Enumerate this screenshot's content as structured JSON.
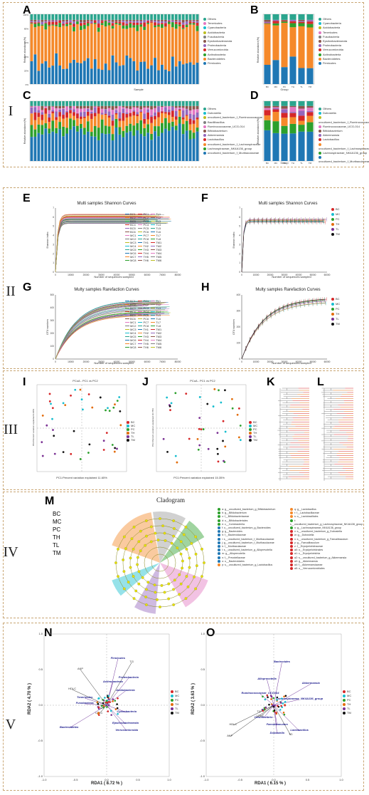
{
  "section_labels": [
    "I",
    "II",
    "III",
    "IV",
    "V"
  ],
  "panel_letters": [
    "A",
    "B",
    "C",
    "D",
    "E",
    "F",
    "G",
    "H",
    "I",
    "J",
    "K",
    "L",
    "M",
    "N",
    "O"
  ],
  "colors": {
    "border": "#c9a674",
    "blue": "#1f77b4",
    "orange": "#f5892a",
    "green": "#2ca02c",
    "red": "#d62728",
    "teal": "#2ba58e"
  },
  "panelA": {
    "xlabel": "Sample",
    "ylabel": "Relative abundance(%)",
    "legend": [
      "Others",
      "Tenericutes",
      "Cyanobacteria",
      "Acidobacteria",
      "Fusobacteria",
      "Epsilonbacteraeota",
      "Proteobacteria",
      "Verrucomicrobia",
      "Actinobacteria",
      "Bacteroidetes",
      "Firmicutes"
    ],
    "yticks": [
      "100%",
      "80%",
      "60%",
      "40%",
      "20%",
      "0%"
    ]
  },
  "panelB": {
    "xlabel": "Group",
    "ylabel": "Relative abundance(%)",
    "groups": [
      "BC",
      "MC",
      "PC",
      "TH",
      "TL",
      "TM"
    ],
    "legend": [
      "Others",
      "Cyanobacteria",
      "Acidobacteria",
      "Tenericutes",
      "Fusobacteria",
      "Epsilonbacteraeota",
      "Proteobacteria",
      "Verrucomicrobia",
      "Actinobacteria",
      "Bacteroidetes",
      "Firmicutes"
    ]
  },
  "panelC": {
    "ylabel": "Relative abundance(%)",
    "legend": [
      "Others",
      "Dubosiella",
      "uncultured_bacterium_f_Ruminococcaceae",
      "Bacillibacillus",
      "Ruminococcaceae_UCG-014",
      "Bifidobacterium",
      "Akkermansia",
      "Lactobacillus",
      "uncultured_bacterium_f_Lachnospiraceae",
      "Lachnospiraceae_NK4A136_group",
      "uncultured_bacterium_f_Muribaculaceae"
    ]
  },
  "panelD": {
    "xlabel": "Group",
    "ylabel": "Relative abundance(%)",
    "groups": [
      "BC",
      "MC",
      "PC",
      "TH",
      "TL",
      "TM"
    ],
    "legend": [
      "Others",
      "Dubosiella",
      "uncultured_bacterium_f_Ruminococcaceae",
      "Ruminococcaceae_UCG-014",
      "Bifidobacterium",
      "Akkermansia",
      "Lactobacillus",
      "uncultured_bacterium_f_Lachnospiraceae",
      "Lachnospiraceae_NK4A136_group",
      "uncultured_bacterium_f_Muribaculaceae"
    ]
  },
  "panelE": {
    "title": "Multi samples Shannon Curves",
    "xlabel": "Number of sequences sampled",
    "ylabel": "Shannon index",
    "xticks": [
      "0",
      "10000",
      "20000",
      "30000",
      "40000",
      "50000",
      "60000",
      "70000",
      "80000"
    ],
    "yticks": [
      "0",
      "1",
      "2",
      "3",
      "4",
      "5",
      "6",
      "7"
    ],
    "legend_cols": [
      [
        "BC1",
        "BC2",
        "BC3",
        "BC4",
        "BC5",
        "BC6",
        "MC1",
        "MC2",
        "MC3",
        "MC4",
        "MC5",
        "MC6",
        "MC7",
        "MC8"
      ],
      [
        "PC1",
        "PC2",
        "PC3",
        "PC4",
        "PC5",
        "PC6",
        "PC7",
        "PC8",
        "TH1",
        "TH2",
        "TH3",
        "TH4",
        "TH5",
        "TH6"
      ],
      [
        "TL1",
        "TL2",
        "TL3",
        "TL4",
        "TL5",
        "TL6",
        "TL7",
        "TL8",
        "TM1",
        "TM2",
        "TM3",
        "TM4",
        "TM5",
        "TM6"
      ]
    ]
  },
  "panelF": {
    "title": "Multi samples Shannon Curves",
    "xlabel": "Number of sequences sampled",
    "ylabel": "Shannon index",
    "xticks": [
      "0",
      "10000",
      "20000",
      "30000",
      "40000",
      "50000",
      "60000"
    ],
    "yticks": [
      "0",
      "1",
      "2",
      "3",
      "4",
      "5",
      "6",
      "7"
    ],
    "legend": [
      "BC",
      "MC",
      "PC",
      "TH",
      "TL",
      "TM"
    ]
  },
  "panelG": {
    "title": "Multy samples Rarefaction Curves",
    "xlabel": "Number of sequences sampled",
    "ylabel": "OTU numbers",
    "xticks": [
      "0",
      "10000",
      "20000",
      "30000",
      "40000",
      "50000",
      "60000",
      "70000",
      "80000"
    ],
    "yticks": [
      "0",
      "100",
      "200",
      "300",
      "400",
      "500"
    ],
    "legend_cols": [
      [
        "BC1",
        "BC2",
        "BC3",
        "BC4",
        "BC5",
        "BC6",
        "MC1",
        "MC2",
        "MC3",
        "MC4",
        "MC5",
        "MC6",
        "MC7",
        "MC8"
      ],
      [
        "PC1",
        "PC2",
        "PC3",
        "PC4",
        "PC5",
        "PC6",
        "PC7",
        "PC8",
        "TH1",
        "TH2",
        "TH3",
        "TH4",
        "TH5",
        "TH6"
      ],
      [
        "TL1",
        "TL2",
        "TL3",
        "TL4",
        "TL5",
        "TL6",
        "TL7",
        "TL8",
        "TM1",
        "TM2",
        "TM3",
        "TM4",
        "TM5",
        "TM6"
      ]
    ]
  },
  "panelH": {
    "title": "Multy samples Rarefaction Curves",
    "xlabel": "Number of sequences sampled",
    "ylabel": "OTU numbers",
    "xticks": [
      "0",
      "10000",
      "20000",
      "30000",
      "40000",
      "50000",
      "60000"
    ],
    "yticks": [
      "0",
      "100",
      "200",
      "300",
      "400"
    ],
    "legend": [
      "BC",
      "MC",
      "PC",
      "TH",
      "TL",
      "TM"
    ]
  },
  "panelI": {
    "title": "PCoA - PC1 vs PC2",
    "xlabel": "PC1:Percent variation explained 11.65%",
    "ylabel": "PC2:Percent variation explained 9.90%",
    "legend": [
      "BC",
      "MC",
      "PC",
      "TH",
      "TL",
      "TM"
    ]
  },
  "panelJ": {
    "title": "PCoA - PC1 vs PC2",
    "xlabel": "PC1:Percent variation explained 15.35%",
    "ylabel": "PC2:Percent variation explained 10.78%",
    "legend": [
      "BC",
      "MC",
      "PC",
      "TH",
      "TL",
      "TM"
    ]
  },
  "panelM": {
    "title": "Cladogram",
    "groups": [
      "BC",
      "MC",
      "PC",
      "TH",
      "TL",
      "TM"
    ],
    "features_left": [
      "a: g__uncultured_bacterium_g_Bifidobacterium",
      "b: g__Bifidobacterium",
      "c: f__Bifidobacteriaceae",
      "d: o__Bifidobacteriales",
      "e: c__Coriobacteriia",
      "f: o__uncultured_bacterium_g_Bacteroides",
      "g: g__Bacteroides",
      "h: f__Bacteroidaceae",
      "i: s__uncultured_bacterium_f_Muribaculaceae",
      "j: g__uncultured_bacterium_f_Muribaculaceae",
      "k: f__Muribaculaceae",
      "l: s__uncultured_bacterium_g_Alloprevotella",
      "m: g__Alloprevotella",
      "n: f__Prevotellaceae",
      "o: o__Bacteroidales",
      "p: s__uncultured_bacterium_g_Lactobacillus"
    ],
    "features_right": [
      "q: g__Lactobacillus",
      "r: f__Lactobacillaceae",
      "s: o__Lactobacillales",
      "t: s__uncultured_bacterium_g_Lachnospiraceae_NK4A136_group",
      "u: g__Lachnospiraceae_NK4A136_group",
      "v: s__uncultured_bacterium_g_Dubosiella",
      "w: g__Dubosiella",
      "x: s__uncultured_bacterium_g_Faecalibaculum",
      "y: g__Faecalibaculum",
      "z: f__Erysipelotrichaceae",
      "a0: o__Erysipelotrichales",
      "a1: c__Erysipelotrichia",
      "a2: s__uncultured_bacterium_g_Akkermansia",
      "a3: g__Akkermansia",
      "a4: f__Akkermansiaceae",
      "a5: o__Verrucomicrobiales"
    ]
  },
  "panelN": {
    "xlabel": "RDA1 ( 8.72 % )",
    "ylabel": "RDA2 ( 4.70 % )",
    "xticks": [
      "-1.0",
      "-0.5",
      "0.0",
      "0.5",
      "1.0"
    ],
    "yticks": [
      "-1.0",
      "-0.5",
      "0.0",
      "0.5",
      "1.0"
    ],
    "legend": [
      "BC",
      "MC",
      "PC",
      "TH",
      "TL",
      "TM"
    ],
    "arrow_labels": [
      "AKP",
      "HDLC",
      "TG",
      "TC",
      "LDLC"
    ],
    "taxa_labels": [
      "Firmicutes",
      "Proteobacteria",
      "Actinobacteria",
      "Acidobacteria",
      "Tenericutes",
      "Fusobacteria",
      "Cyanobacteria",
      "Epsilonbacteraeota",
      "Bacteroidetes",
      "Verrucomicrobia"
    ]
  },
  "panelO": {
    "xlabel": "RDA1 ( 6.15 % )",
    "ylabel": "RDA2 ( 3.63 % )",
    "xticks": [
      "-1.0",
      "-0.5",
      "0.0",
      "0.5",
      "1.0"
    ],
    "yticks": [
      "-1.0",
      "-0.5",
      "0.0",
      "0.5",
      "1.0"
    ],
    "legend": [
      "BC",
      "MC",
      "PC",
      "TH",
      "TL",
      "TM"
    ],
    "arrow_labels": [
      "AKP",
      "HDLC",
      "TC",
      "LDLC",
      "TG"
    ],
    "taxa_labels": [
      "Bacteroides",
      "Alloprevotella",
      "Akkermansia",
      "Ruminococcaceae_UCG014",
      "Lachnospiraceae_NK4A136_group",
      "Desulfovibrio",
      "Faecalibaculum",
      "Dubosiella",
      "Lactobacillus"
    ]
  }
}
